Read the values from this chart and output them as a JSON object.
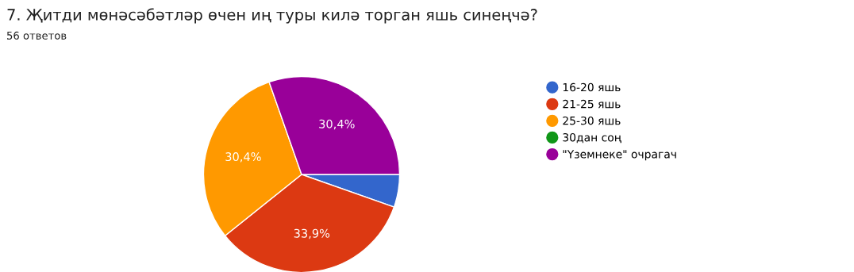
{
  "chart_data": {
    "type": "pie",
    "title": "7. Җитди мөнәсәбәтләр өчен иң туры килә торган яшь синеңчә?",
    "subtitle": "56 ответов",
    "categories": [
      "16-20 яшь",
      "21-25 яшь",
      "25-30 яшь",
      "30дан соң",
      "\"Үземнеке\" очрагач"
    ],
    "values": [
      5.4,
      33.9,
      30.4,
      0,
      30.4
    ],
    "colors": [
      "#3366cc",
      "#dc3912",
      "#ff9900",
      "#109618",
      "#990099"
    ],
    "value_labels": [
      null,
      "33,9%",
      "30,4%",
      null,
      "30,4%"
    ],
    "legend": "right"
  }
}
